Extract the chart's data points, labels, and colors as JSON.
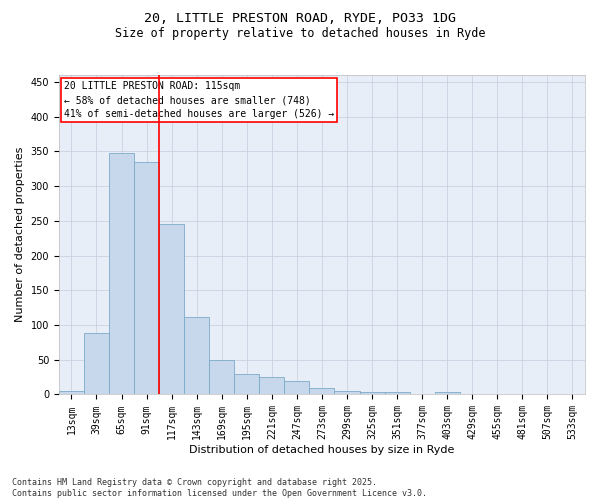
{
  "title_line1": "20, LITTLE PRESTON ROAD, RYDE, PO33 1DG",
  "title_line2": "Size of property relative to detached houses in Ryde",
  "xlabel": "Distribution of detached houses by size in Ryde",
  "ylabel": "Number of detached properties",
  "bar_color": "#c8d8ec",
  "bar_edge_color": "#7aaac8",
  "background_color": "#e8eef8",
  "grid_color": "#c8cce0",
  "vline_color": "red",
  "annotation_box_color": "red",
  "annotation_text_line1": "20 LITTLE PRESTON ROAD: 115sqm",
  "annotation_text_line2": "← 58% of detached houses are smaller (748)",
  "annotation_text_line3": "41% of semi-detached houses are larger (526) →",
  "categories": [
    "13sqm",
    "39sqm",
    "65sqm",
    "91sqm",
    "117sqm",
    "143sqm",
    "169sqm",
    "195sqm",
    "221sqm",
    "247sqm",
    "273sqm",
    "299sqm",
    "325sqm",
    "351sqm",
    "377sqm",
    "403sqm",
    "429sqm",
    "455sqm",
    "481sqm",
    "507sqm",
    "533sqm"
  ],
  "values": [
    5,
    88,
    348,
    335,
    245,
    111,
    49,
    30,
    25,
    19,
    10,
    5,
    3,
    4,
    0,
    3,
    0,
    1,
    0,
    0,
    0
  ],
  "ylim": [
    0,
    460
  ],
  "yticks": [
    0,
    50,
    100,
    150,
    200,
    250,
    300,
    350,
    400,
    450
  ],
  "footer_text": "Contains HM Land Registry data © Crown copyright and database right 2025.\nContains public sector information licensed under the Open Government Licence v3.0.",
  "title_fontsize": 9.5,
  "subtitle_fontsize": 8.5,
  "axis_label_fontsize": 8,
  "tick_fontsize": 7,
  "annotation_fontsize": 7,
  "footer_fontsize": 6,
  "vline_index": 3.5
}
